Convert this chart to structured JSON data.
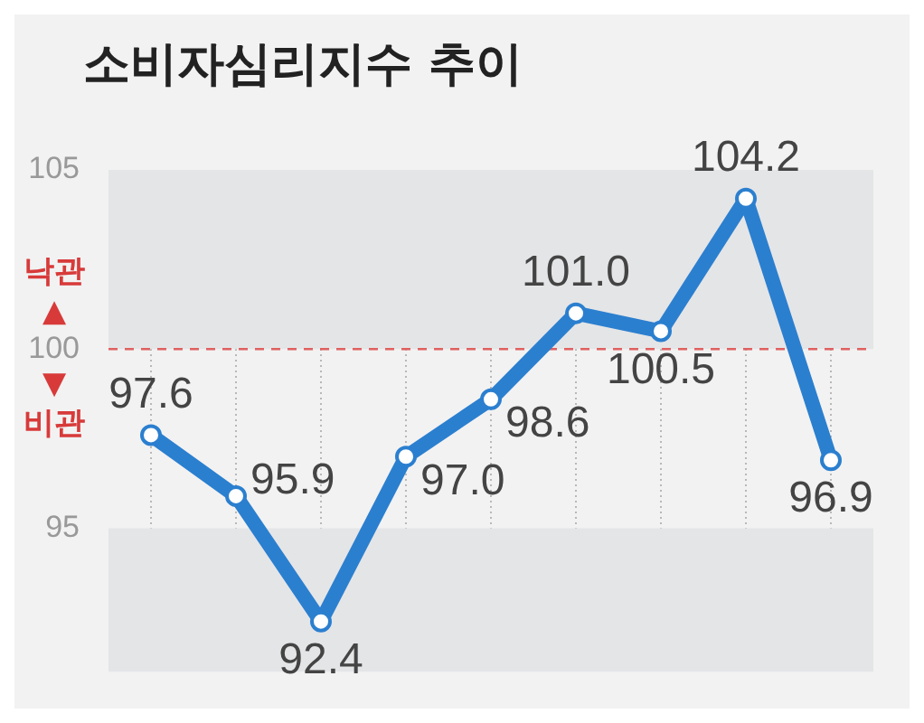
{
  "chart_data": {
    "type": "line",
    "title": "소비자심리지수 추이",
    "categories": [
      null,
      null,
      null,
      null,
      null,
      null,
      null,
      null,
      null
    ],
    "series": [
      {
        "color": "#2b7fcf",
        "values": [
          97.6,
          95.9,
          92.4,
          97.0,
          98.6,
          101.0,
          100.5,
          104.2,
          96.9
        ],
        "value_labels": [
          "97.6",
          "95.9",
          "92.4",
          "97.0",
          "98.6",
          "101.0",
          "100.5",
          "104.2",
          "96.9"
        ]
      }
    ],
    "ylim": [
      91,
      105
    ],
    "yticks": [
      95,
      100,
      105
    ],
    "grid": "x",
    "marker": "circle",
    "legend": false,
    "ref_lines": [
      {
        "axis": "y",
        "value": 100,
        "color": "#e06060",
        "line_style": "dashed"
      }
    ],
    "bands": [
      {
        "axis": "y",
        "from": 100,
        "to": 105,
        "color": "#e4e5e7"
      },
      {
        "axis": "y",
        "from": 91,
        "to": 95,
        "color": "#e4e5e7"
      }
    ],
    "annotations": [
      "낙관 ▲",
      "▼ 비관"
    ]
  }
}
